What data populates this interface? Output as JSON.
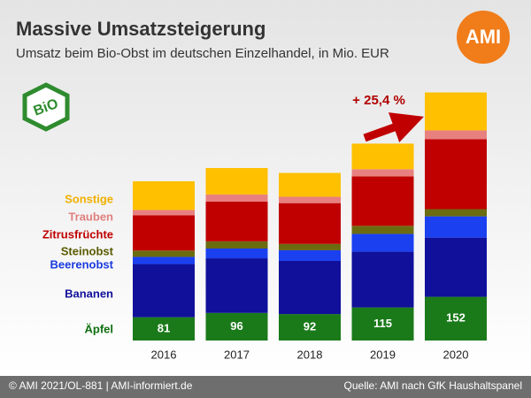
{
  "chart_data": {
    "type": "stacked_bar",
    "title": "Massive Umsatzsteigerung",
    "subtitle": "Umsatz beim Bio-Obst im deutschen Einzelhandel, in Mio. EUR",
    "logo": "AMI",
    "badge": "BiO",
    "annotation": "+ 25,4 %",
    "footer_left": "© AMI 2021/OL-881 | AMI-informiert.de",
    "footer_right": "Quelle: AMI nach GfK Haushaltspanel",
    "categories": [
      "2016",
      "2017",
      "2018",
      "2019",
      "2020"
    ],
    "series": [
      {
        "name": "Äpfel",
        "color": "#1a7a1a",
        "label_color": "#107010",
        "values": [
          81,
          96,
          92,
          115,
          152
        ]
      },
      {
        "name": "Bananen",
        "color": "#10109a",
        "label_color": "#10109a",
        "values": [
          185,
          190,
          185,
          194,
          206
        ]
      },
      {
        "name": "Beerenobst",
        "color": "#1a40f0",
        "label_color": "#1a3ae0",
        "values": [
          25,
          34,
          37,
          62,
          74
        ]
      },
      {
        "name": "Steinobst",
        "color": "#6b6b10",
        "label_color": "#5a5a00",
        "values": [
          22,
          25,
          22,
          28,
          25
        ]
      },
      {
        "name": "Zitrusfrüchte",
        "color": "#c00000",
        "label_color": "#c00000",
        "values": [
          123,
          138,
          142,
          172,
          243
        ]
      },
      {
        "name": "Trauben",
        "color": "#e88080",
        "label_color": "#e08080",
        "values": [
          18,
          25,
          22,
          25,
          31
        ]
      },
      {
        "name": "Sonstige",
        "color": "#ffc000",
        "label_color": "#f0b000",
        "values": [
          100,
          92,
          83,
          89,
          132
        ]
      }
    ]
  }
}
